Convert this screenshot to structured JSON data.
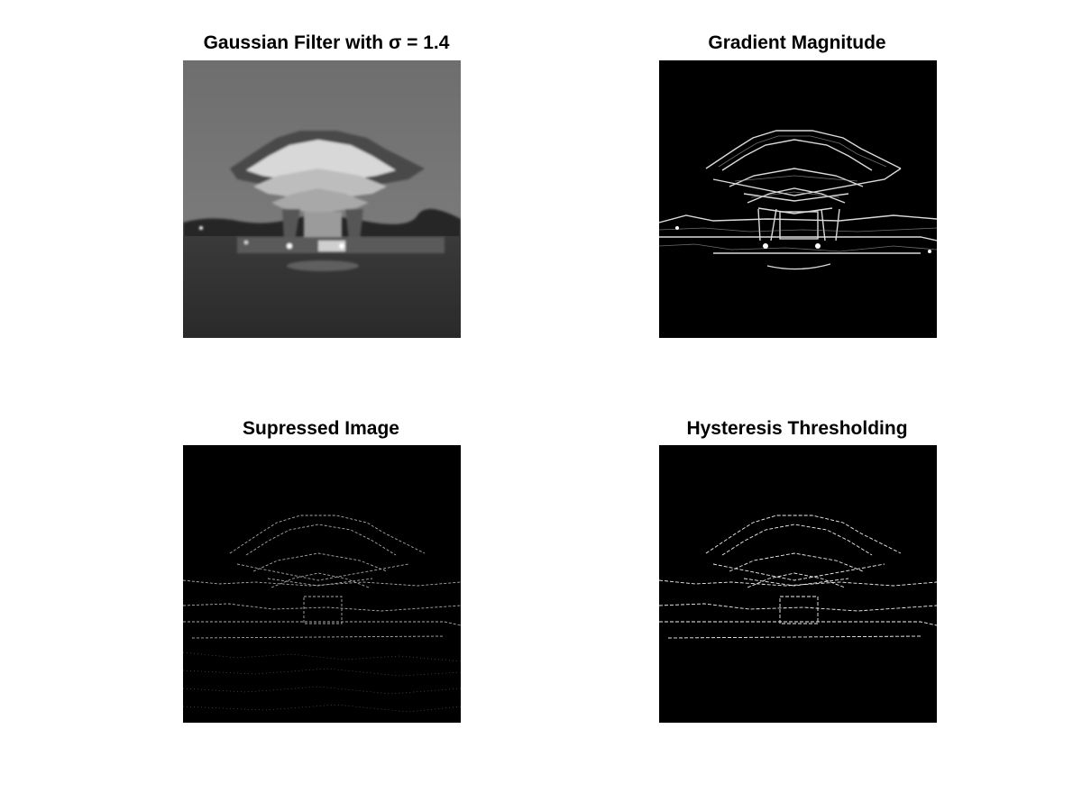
{
  "figure": {
    "background": "#ffffff",
    "panels": [
      {
        "title": "Gaussian Filter with σ = 1.4",
        "content": "blurred grayscale photo of a brutalist library building at dusk"
      },
      {
        "title": "Gradient Magnitude",
        "content": "edge strength map, bright outlines on black"
      },
      {
        "title": "Supressed Image",
        "content": "non-maximum suppressed thin edges on black"
      },
      {
        "title": "Hysteresis Thresholding",
        "content": "final binary edge map on black"
      }
    ]
  }
}
